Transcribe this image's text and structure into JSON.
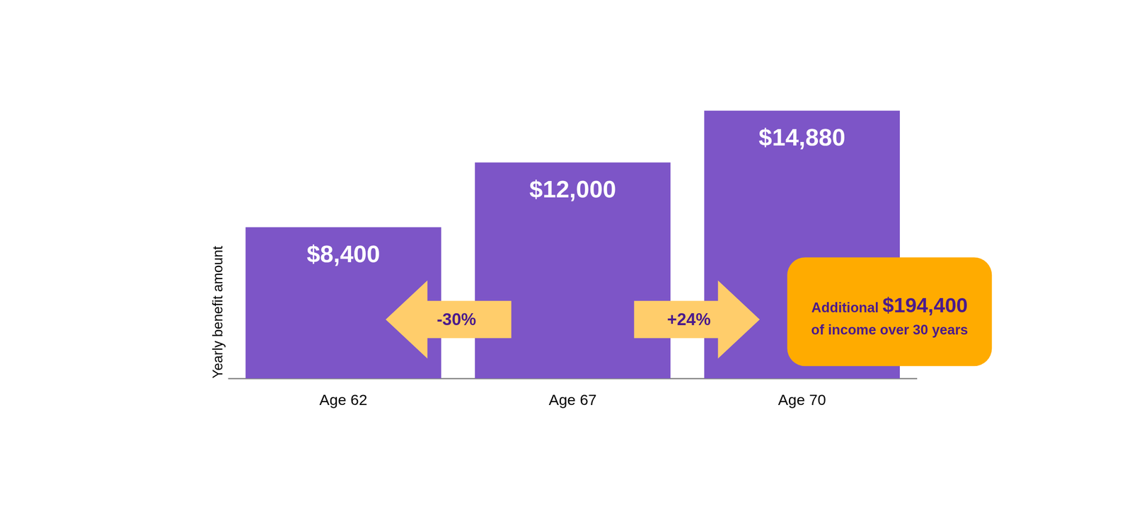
{
  "chart_data": {
    "type": "bar",
    "categories": [
      "Age 62",
      "Age 67",
      "Age 70"
    ],
    "values": [
      8400,
      12000,
      14880
    ],
    "value_labels": [
      "$8,400",
      "$12,000",
      "$14,880"
    ],
    "data_labels": true,
    "color": "#7d55c7",
    "y_label": "Yearly benefit amount",
    "ylim": [
      0,
      16000
    ],
    "grid": false,
    "tick_labels": "x",
    "annotations": [
      {
        "label": "-30%",
        "from": "Age 67",
        "to": "Age 62"
      },
      {
        "label": "+24%",
        "from": "Age 67",
        "to": "Age 70"
      },
      {
        "text": "Additional",
        "label": "$194,400",
        "note": "of income over 30 years",
        "at": "Age 70"
      }
    ]
  }
}
